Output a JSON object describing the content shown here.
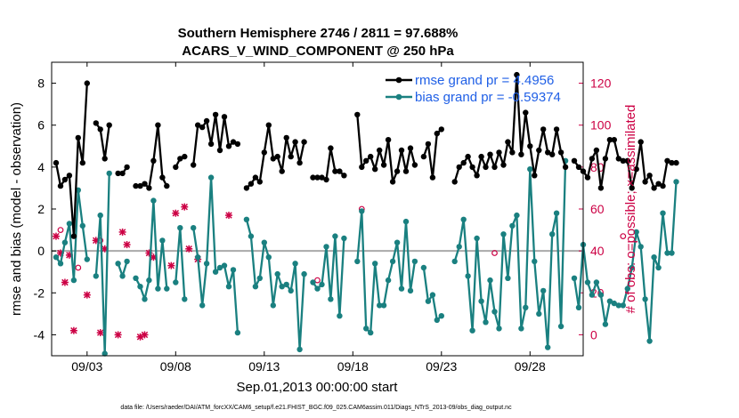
{
  "chart_data": {
    "type": "line",
    "title": "Southern Hemisphere 2746 / 2811 = 97.688%",
    "subtitle": "ACARS_V_WIND_COMPONENT @ 250 hPa",
    "xlabel": "Sep.01,2013 00:00:00 start",
    "ylabel": "rmse and bias (model - observation)",
    "y2label": "# of obs: o=possible; ×=assimilated",
    "footnote": "data file: /Users/raeder/DAI/ATM_forcXX/CAM6_setup/f.e21.FHIST_BGC.f09_025.CAM6assim.011/Diags_NTrS_2013-09/obs_diag_output.nc",
    "xlim": [
      0.5,
      30.5
    ],
    "ylim": [
      -5,
      9
    ],
    "y2lim": [
      -10,
      130
    ],
    "xticks": [
      2.5,
      7.5,
      12.5,
      17.5,
      22.5,
      27.5
    ],
    "xticklabels": [
      "09/03",
      "09/08",
      "09/13",
      "09/18",
      "09/23",
      "09/28"
    ],
    "yticks": [
      -4,
      -2,
      0,
      2,
      4,
      6,
      8
    ],
    "y2ticks": [
      0,
      20,
      40,
      60,
      80,
      100,
      120
    ],
    "legend": [
      {
        "label": "rmse grand pr = 4.4956",
        "color": "#000000"
      },
      {
        "label": "bias grand pr = -0.59374",
        "color": "#1a8080"
      }
    ],
    "colors": {
      "rmse": "#000000",
      "bias": "#1a8080",
      "obs": "#cc0044",
      "zero_line": "#aaaaaa"
    },
    "x_start": 0.75,
    "x_step": 0.25,
    "series": [
      {
        "name": "rmse",
        "values": [
          4.2,
          3.1,
          3.4,
          3.6,
          0.7,
          5.4,
          4.2,
          8.0,
          null,
          6.1,
          5.8,
          4.4,
          6.0,
          null,
          3.7,
          3.7,
          4.0,
          null,
          3.1,
          3.1,
          3.2,
          3.0,
          4.3,
          6.0,
          3.5,
          3.1,
          null,
          4.0,
          4.4,
          4.5,
          null,
          4.1,
          6.0,
          5.9,
          6.2,
          5.1,
          6.5,
          4.8,
          6.4,
          5.0,
          5.2,
          5.1,
          null,
          3.0,
          3.2,
          3.5,
          3.3,
          4.7,
          6.0,
          4.4,
          4.5,
          3.8,
          5.4,
          4.5,
          5.2,
          4.2,
          5.2,
          null,
          3.5,
          3.5,
          3.5,
          3.4,
          4.9,
          3.8,
          3.8,
          3.6,
          null,
          null,
          6.5,
          4.0,
          4.3,
          4.5,
          3.9,
          4.8,
          4.1,
          5.3,
          3.3,
          3.8,
          4.8,
          3.8,
          4.9,
          4.1,
          null,
          4.5,
          5.1,
          3.5,
          5.6,
          5.8,
          null,
          null,
          3.3,
          4.0,
          4.2,
          4.5,
          4.0,
          3.6,
          4.5,
          4.0,
          4.6,
          4.0,
          4.7,
          4.1,
          5.2,
          4.7,
          8.4,
          4.6,
          6.6,
          5.0,
          3.6,
          4.8,
          5.8,
          4.7,
          4.6,
          5.8,
          4.7,
          4.0,
          null,
          4.3,
          4.0,
          3.8,
          3.5,
          4.4,
          4.8,
          3.0,
          4.4,
          5.3,
          5.3,
          4.4,
          4.3,
          4.3,
          3.0,
          3.9,
          5.2,
          3.3,
          3.6,
          3.0,
          3.2,
          3.1,
          4.3,
          4.2,
          4.2
        ]
      },
      {
        "name": "bias",
        "values": [
          -0.3,
          -0.6,
          0.4,
          1.3,
          -1.4,
          2.9,
          1.2,
          -0.4,
          null,
          -1.2,
          1.7,
          -4.9,
          3.7,
          null,
          -0.6,
          -1.2,
          -0.5,
          null,
          -1.3,
          -1.7,
          -2.3,
          -1.4,
          2.4,
          -1.8,
          0.5,
          -1.8,
          null,
          -1.5,
          1.1,
          -2.3,
          null,
          1.1,
          -0.3,
          -2.6,
          -0.6,
          3.5,
          -1.0,
          -0.8,
          -0.7,
          -1.7,
          -0.9,
          -3.9,
          null,
          1.5,
          0.7,
          -1.7,
          -1.3,
          0.4,
          -0.3,
          -2.6,
          -1.1,
          -1.7,
          -1.6,
          -1.9,
          -0.6,
          -4.7,
          -1.1,
          null,
          -1.5,
          -1.8,
          -1.6,
          0.2,
          -2.3,
          0.7,
          -3.1,
          0.6,
          null,
          null,
          -0.5,
          1.9,
          -3.7,
          -3.9,
          -0.6,
          -2.6,
          -2.6,
          -1.4,
          -0.5,
          0.4,
          -1.8,
          1.4,
          -1.9,
          -0.5,
          null,
          -0.8,
          -2.4,
          -2.1,
          -3.3,
          -3.1,
          null,
          null,
          -0.5,
          0.2,
          1.5,
          -1.2,
          -3.8,
          0.6,
          -2.4,
          -3.4,
          -1.4,
          -2.9,
          -3.7,
          0.8,
          -1.3,
          1.2,
          1.7,
          -3.7,
          -2.7,
          3.9,
          -0.5,
          -3.0,
          -1.9,
          -4.6,
          0.8,
          1.8,
          -3.6,
          4.3,
          null,
          -1.3,
          -2.7,
          0.3,
          -1.5,
          -2.1,
          -1.5,
          -2.1,
          -3.5,
          -2.4,
          -2.5,
          -2.6,
          -2.6,
          -1.8,
          -0.8,
          0.9,
          0.2,
          -2.3,
          -4.3,
          -0.3,
          -0.8,
          1.8,
          -0.1,
          -0.1,
          3.3
        ]
      },
      {
        "name": "obs_possible",
        "values": [
          null,
          50,
          null,
          null,
          null,
          32,
          null,
          null,
          null,
          null,
          45,
          null,
          null,
          null,
          null,
          null,
          null,
          null,
          null,
          null,
          null,
          null,
          null,
          null,
          null,
          null,
          null,
          null,
          null,
          null,
          null,
          null,
          null,
          null,
          null,
          null,
          null,
          null,
          null,
          null,
          null,
          null,
          null,
          null,
          null,
          null,
          null,
          null,
          null,
          null,
          null,
          null,
          null,
          null,
          null,
          null,
          null,
          null,
          null,
          26,
          null,
          null,
          null,
          null,
          null,
          null,
          null,
          null,
          null,
          60,
          null,
          null,
          null,
          null,
          null,
          null,
          null,
          null,
          null,
          null,
          null,
          null,
          null,
          null,
          null,
          null,
          null,
          null,
          null,
          null,
          null,
          null,
          null,
          null,
          null,
          null,
          null,
          null,
          null,
          39,
          null,
          null,
          null,
          null,
          null,
          null,
          null,
          null,
          null,
          null,
          null,
          null,
          null,
          null,
          null,
          null,
          null,
          null,
          null,
          null,
          null,
          null,
          null,
          null,
          null,
          null,
          null,
          null,
          47,
          null,
          null,
          null,
          null,
          null,
          null,
          null,
          null,
          null,
          null,
          null,
          null
        ]
      },
      {
        "name": "obs_assimilated",
        "values": [
          47,
          39,
          25,
          38,
          2,
          null,
          null,
          19,
          null,
          45,
          1,
          41,
          null,
          null,
          0,
          49,
          43,
          null,
          null,
          -1,
          0,
          39,
          37,
          null,
          null,
          null,
          33,
          58,
          null,
          61,
          41,
          null,
          36,
          null,
          null,
          null,
          null,
          null,
          null,
          57,
          null,
          null,
          null,
          null,
          null,
          null,
          null,
          null,
          null,
          null,
          null,
          null,
          null,
          null,
          null,
          null,
          null,
          null,
          null,
          null,
          null,
          null,
          null,
          null,
          null,
          null,
          null,
          null,
          null,
          null,
          null,
          null,
          null,
          null,
          null,
          null,
          null,
          null,
          null,
          null,
          null,
          null,
          null,
          null,
          null,
          null,
          null,
          null,
          null,
          null,
          null,
          null,
          null,
          null,
          null,
          null,
          null,
          null,
          null,
          null,
          null,
          null,
          null,
          null,
          null,
          null,
          null,
          null,
          null,
          null,
          null,
          null,
          null,
          null,
          null,
          null,
          null,
          null,
          null,
          null,
          null,
          null,
          null,
          null,
          null,
          null,
          null,
          null,
          null,
          null,
          null,
          null,
          null,
          null,
          null,
          null,
          null,
          null,
          null
        ]
      }
    ]
  }
}
